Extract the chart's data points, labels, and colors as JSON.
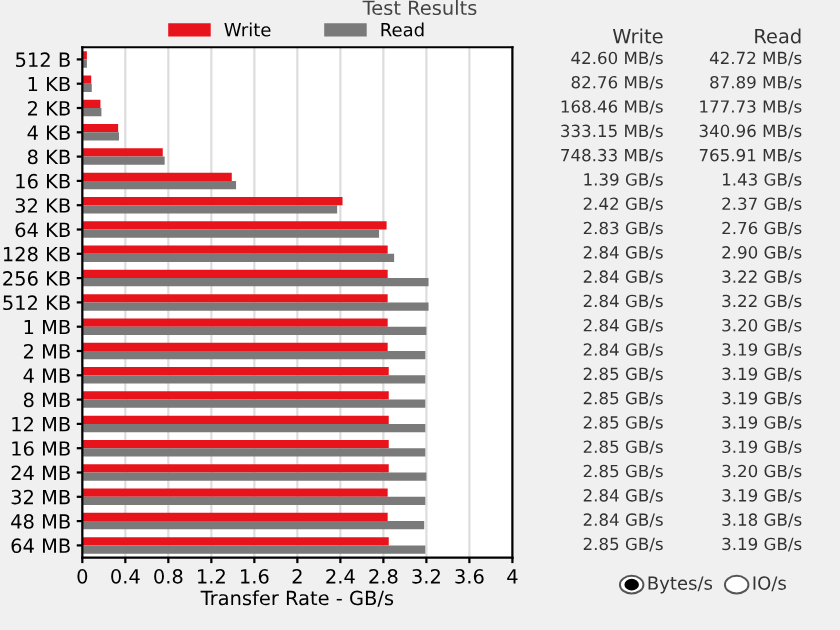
{
  "chart_data": {
    "type": "bar",
    "orientation": "horizontal",
    "title": "Test Results",
    "xlabel": "Transfer Rate - GB/s",
    "categories": [
      "512 B",
      "1 KB",
      "2 KB",
      "4 KB",
      "8 KB",
      "16 KB",
      "32 KB",
      "64 KB",
      "128 KB",
      "256 KB",
      "512 KB",
      "1 MB",
      "2 MB",
      "4 MB",
      "8 MB",
      "12 MB",
      "16 MB",
      "24 MB",
      "32 MB",
      "48 MB",
      "64 MB"
    ],
    "series": [
      {
        "name": "Write",
        "color": "#e8141c",
        "values": [
          0.0426,
          0.08276,
          0.16846,
          0.33315,
          0.74833,
          1.39,
          2.42,
          2.83,
          2.84,
          2.84,
          2.84,
          2.84,
          2.84,
          2.85,
          2.85,
          2.85,
          2.85,
          2.85,
          2.84,
          2.84,
          2.85
        ]
      },
      {
        "name": "Read",
        "color": "#7a7a7a",
        "values": [
          0.04272,
          0.08789,
          0.17773,
          0.34096,
          0.76591,
          1.43,
          2.37,
          2.76,
          2.9,
          3.22,
          3.22,
          3.2,
          3.19,
          3.19,
          3.19,
          3.19,
          3.19,
          3.2,
          3.19,
          3.18,
          3.19
        ]
      }
    ],
    "xlim": [
      0,
      4
    ],
    "xticks": [
      0,
      0.4,
      0.8,
      1.2,
      1.6,
      2,
      2.4,
      2.8,
      3.2,
      3.6,
      4
    ],
    "grid": "x",
    "legend": "top",
    "annotations": [
      "Bytes/s",
      "IO/s",
      "42.60 MB/s",
      "42.72 MB/s",
      "82.76 MB/s",
      "87.89 MB/s",
      "168.46 MB/s",
      "177.73 MB/s",
      "333.15 MB/s",
      "340.96 MB/s",
      "748.33 MB/s",
      "765.91 MB/s",
      "1.39 GB/s",
      "1.43 GB/s",
      "2.42 GB/s",
      "2.37 GB/s",
      "2.83 GB/s",
      "2.76 GB/s",
      "2.84 GB/s",
      "2.90 GB/s",
      "2.84 GB/s",
      "3.22 GB/s",
      "2.84 GB/s",
      "3.22 GB/s",
      "2.84 GB/s",
      "3.20 GB/s",
      "2.84 GB/s",
      "3.19 GB/s",
      "2.85 GB/s",
      "3.19 GB/s",
      "2.85 GB/s",
      "3.19 GB/s",
      "2.85 GB/s",
      "3.19 GB/s",
      "2.85 GB/s",
      "3.19 GB/s",
      "2.85 GB/s",
      "3.20 GB/s",
      "2.84 GB/s",
      "3.19 GB/s",
      "2.84 GB/s",
      "3.18 GB/s",
      "2.85 GB/s",
      "3.19 GB/s"
    ]
  }
}
